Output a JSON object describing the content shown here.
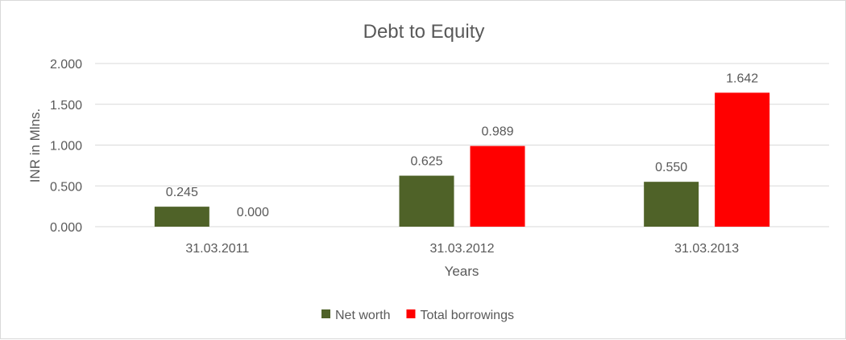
{
  "chart_data": {
    "type": "bar",
    "title": "Debt to Equity",
    "xlabel": "Years",
    "ylabel": "INR in Mlns.",
    "categories": [
      "31.03.2011",
      "31.03.2012",
      "31.03.2013"
    ],
    "series": [
      {
        "name": "Net worth",
        "values": [
          0.245,
          0.625,
          0.55
        ],
        "labels": [
          "0.245",
          "0.625",
          "0.550"
        ],
        "color": "#4F6228"
      },
      {
        "name": "Total borrowings",
        "values": [
          0.0,
          0.989,
          1.642
        ],
        "labels": [
          "0.000",
          "0.989",
          "1.642"
        ],
        "color": "#FF0000"
      }
    ],
    "ylim": [
      0,
      2
    ],
    "yticks": [
      "0.000",
      "0.500",
      "1.000",
      "1.500",
      "2.000"
    ],
    "grid": true,
    "legend": "bottom"
  }
}
